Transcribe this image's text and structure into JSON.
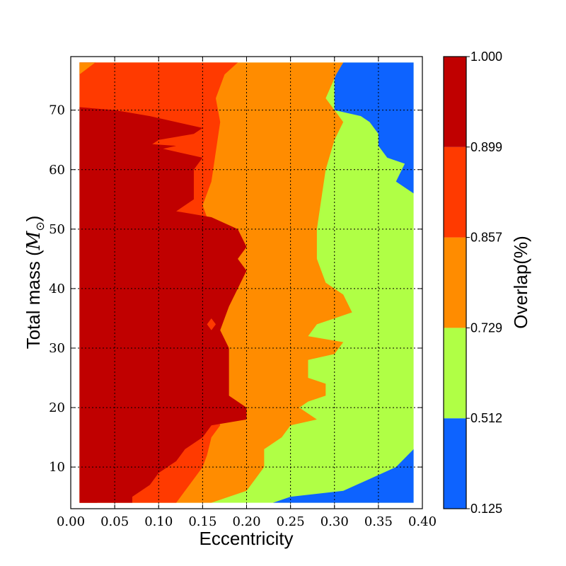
{
  "chart_data": {
    "type": "heatmap",
    "subtype": "filled-contour",
    "xlabel": "Eccentricity",
    "ylabel_text": "Total mass (",
    "ylabel_math": "M",
    "ylabel_sub": "⊙",
    "ylabel_end": ")",
    "xlim": [
      0.0,
      0.4
    ],
    "ylim": [
      3,
      79
    ],
    "xticks": [
      "0.00",
      "0.05",
      "0.10",
      "0.15",
      "0.20",
      "0.25",
      "0.30",
      "0.35",
      "0.40"
    ],
    "yticks": [
      "10",
      "20",
      "30",
      "40",
      "50",
      "60",
      "70"
    ],
    "grid": true,
    "colorbar": {
      "label": "Overlap(%)",
      "levels": [
        "0.125",
        "0.512",
        "0.729",
        "0.857",
        "0.899",
        "1.000"
      ],
      "colors": [
        "#0d63ff",
        "#b0ff45",
        "#ff8c00",
        "#ff3a00",
        "#c00000"
      ]
    },
    "data_extent": {
      "x": [
        0.01,
        0.39
      ],
      "y": [
        4,
        78
      ]
    },
    "boundaries": [
      {
        "name": "b_0.512",
        "points": [
          [
            0.39,
            4
          ],
          [
            0.39,
            13
          ],
          [
            0.37,
            10
          ],
          [
            0.34,
            8
          ],
          [
            0.31,
            6
          ],
          [
            0.25,
            5
          ],
          [
            0.23,
            4
          ]
        ]
      },
      {
        "name": "b_0.729",
        "points": [
          [
            0.31,
            78
          ],
          [
            0.302,
            76
          ],
          [
            0.29,
            72
          ],
          [
            0.3,
            70
          ],
          [
            0.31,
            68
          ],
          [
            0.3,
            65
          ],
          [
            0.29,
            60
          ],
          [
            0.285,
            55
          ],
          [
            0.28,
            50
          ],
          [
            0.28,
            45
          ],
          [
            0.29,
            41
          ],
          [
            0.31,
            39
          ],
          [
            0.32,
            36
          ],
          [
            0.3,
            35
          ],
          [
            0.28,
            34
          ],
          [
            0.27,
            32
          ],
          [
            0.31,
            31
          ],
          [
            0.3,
            29
          ],
          [
            0.27,
            28
          ],
          [
            0.27,
            25
          ],
          [
            0.29,
            24
          ],
          [
            0.29,
            22
          ],
          [
            0.27,
            21
          ],
          [
            0.26,
            20
          ],
          [
            0.28,
            18
          ],
          [
            0.25,
            17
          ],
          [
            0.24,
            15
          ],
          [
            0.22,
            13
          ],
          [
            0.22,
            10
          ],
          [
            0.21,
            8
          ],
          [
            0.2,
            6
          ],
          [
            0.18,
            5
          ],
          [
            0.16,
            4
          ]
        ]
      },
      {
        "name": "b_0.857",
        "points": [
          [
            0.19,
            78
          ],
          [
            0.175,
            76
          ],
          [
            0.165,
            72
          ],
          [
            0.17,
            68
          ],
          [
            0.165,
            63
          ],
          [
            0.16,
            58
          ],
          [
            0.15,
            54
          ],
          [
            0.16,
            50
          ],
          [
            0.17,
            47
          ],
          [
            0.17,
            44
          ],
          [
            0.165,
            40
          ],
          [
            0.18,
            37
          ],
          [
            0.165,
            35
          ],
          [
            0.17,
            32
          ],
          [
            0.17,
            29
          ],
          [
            0.165,
            26
          ],
          [
            0.17,
            23
          ],
          [
            0.165,
            20
          ],
          [
            0.17,
            17
          ],
          [
            0.16,
            15
          ],
          [
            0.155,
            12
          ],
          [
            0.15,
            10
          ],
          [
            0.14,
            8
          ],
          [
            0.13,
            6
          ],
          [
            0.12,
            4
          ]
        ]
      },
      {
        "name": "b_0.899",
        "points": [
          [
            0.028,
            78
          ],
          [
            0.01,
            76
          ],
          [
            0.01,
            70.5
          ],
          [
            0.05,
            70
          ],
          [
            0.09,
            69
          ],
          [
            0.12,
            68
          ],
          [
            0.15,
            67
          ],
          [
            0.14,
            66
          ],
          [
            0.1,
            65
          ],
          [
            0.09,
            64
          ],
          [
            0.12,
            63
          ],
          [
            0.15,
            62
          ],
          [
            0.14,
            60
          ],
          [
            0.14,
            57
          ],
          [
            0.14,
            55
          ],
          [
            0.12,
            53
          ],
          [
            0.16,
            52
          ],
          [
            0.19,
            50
          ],
          [
            0.2,
            47
          ],
          [
            0.19,
            45
          ],
          [
            0.2,
            43
          ],
          [
            0.19,
            40
          ],
          [
            0.18,
            37
          ],
          [
            0.17,
            33
          ],
          [
            0.18,
            30
          ],
          [
            0.18,
            27
          ],
          [
            0.18,
            24
          ],
          [
            0.18,
            22
          ],
          [
            0.2,
            20
          ],
          [
            0.2,
            18
          ],
          [
            0.16,
            17
          ],
          [
            0.15,
            15
          ],
          [
            0.13,
            13
          ],
          [
            0.12,
            11
          ],
          [
            0.1,
            9
          ],
          [
            0.09,
            7
          ],
          [
            0.07,
            5
          ],
          [
            0.07,
            4
          ]
        ]
      },
      {
        "name": "b_1.000",
        "points": [
          [
            0.01,
            68
          ],
          [
            0.07,
            67
          ],
          [
            0.1,
            67
          ],
          [
            0.08,
            66
          ],
          [
            0.04,
            65.5
          ],
          [
            0.01,
            65
          ],
          [
            0.01,
            53
          ],
          [
            0.02,
            50
          ],
          [
            0.05,
            49
          ],
          [
            0.09,
            48
          ],
          [
            0.12,
            47
          ],
          [
            0.13,
            45
          ],
          [
            0.13,
            41
          ],
          [
            0.14,
            39
          ],
          [
            0.13,
            37
          ],
          [
            0.11,
            35
          ],
          [
            0.13,
            33
          ],
          [
            0.15,
            30
          ],
          [
            0.16,
            27
          ],
          [
            0.14,
            25
          ],
          [
            0.16,
            22
          ],
          [
            0.17,
            20
          ],
          [
            0.14,
            19
          ],
          [
            0.12,
            16
          ],
          [
            0.1,
            14
          ],
          [
            0.08,
            11
          ],
          [
            0.06,
            8
          ],
          [
            0.04,
            5
          ],
          [
            0.03,
            4
          ]
        ]
      }
    ],
    "islands": [
      {
        "level": "0.899",
        "points": [
          [
            0.01,
            61
          ],
          [
            0.03,
            61
          ],
          [
            0.04,
            60
          ],
          [
            0.02,
            59
          ],
          [
            0.01,
            59.5
          ]
        ]
      },
      {
        "level": "0.899",
        "points": [
          [
            0.03,
            58
          ],
          [
            0.05,
            59
          ],
          [
            0.07,
            58.5
          ],
          [
            0.07,
            57
          ],
          [
            0.05,
            56.5
          ],
          [
            0.03,
            57
          ]
        ]
      },
      {
        "level": "0.899",
        "points": [
          [
            0.08,
            52.5
          ],
          [
            0.1,
            52.7
          ],
          [
            0.11,
            52.4
          ],
          [
            0.1,
            51.7
          ],
          [
            0.08,
            51.9
          ]
        ]
      },
      {
        "level": "0.899",
        "points": [
          [
            0.04,
            64
          ],
          [
            0.07,
            64.5
          ],
          [
            0.12,
            64
          ],
          [
            0.09,
            63
          ],
          [
            0.05,
            62.8
          ]
        ]
      },
      {
        "level": "0.857",
        "points": [
          [
            0.155,
            34
          ],
          [
            0.16,
            33
          ],
          [
            0.165,
            34
          ],
          [
            0.16,
            35
          ]
        ]
      }
    ]
  }
}
